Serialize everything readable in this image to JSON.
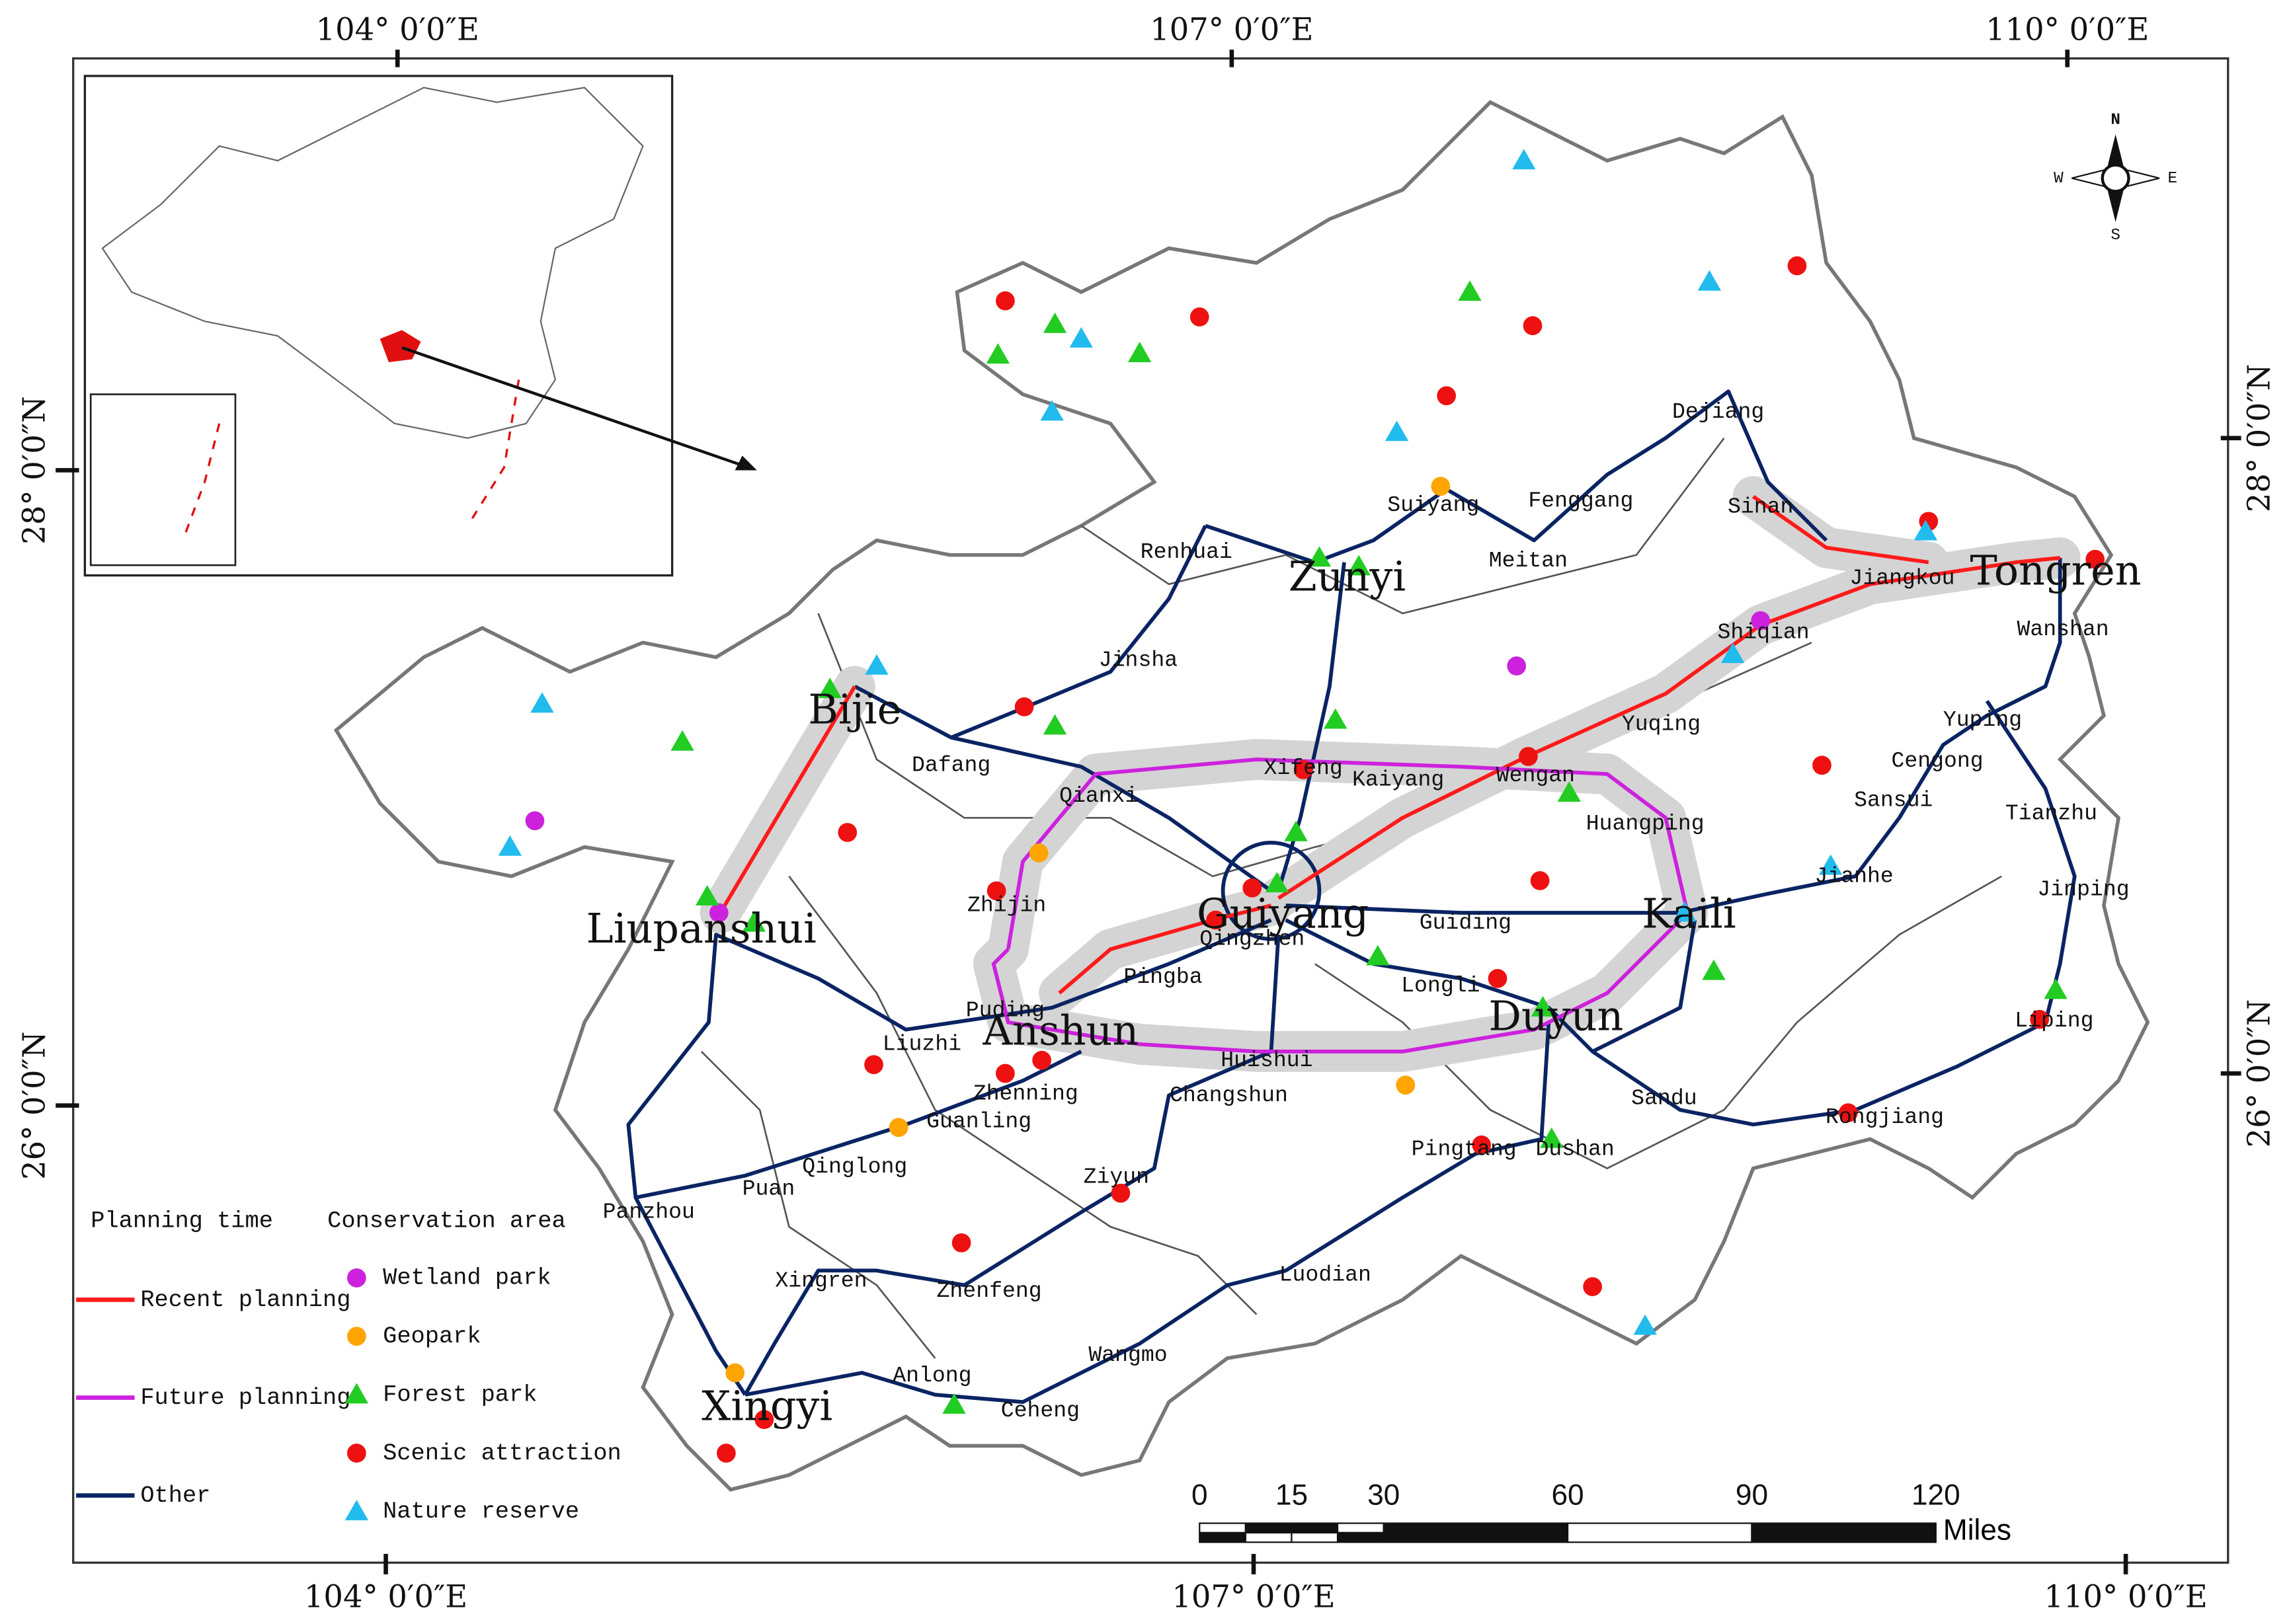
{
  "map": {
    "graticule": {
      "top": [
        "104° 0′0″E",
        "107° 0′0″E",
        "110° 0′0″E"
      ],
      "bottom": [
        "104° 0′0″E",
        "107° 0′0″E",
        "110° 0′0″E"
      ],
      "left": [
        "28° 0′0″N",
        "26° 0′0″N"
      ],
      "right": [
        "28° 0′0″N",
        "26° 0′0″N"
      ]
    },
    "major_cities": [
      "Zunyi",
      "Bijie",
      "Liupanshui",
      "Guiyang",
      "Anshun",
      "Kaili",
      "Duyun",
      "Tongren",
      "Xingyi"
    ],
    "cities": [
      "Dejiang",
      "Suiyang",
      "Fenggang",
      "Sinan",
      "Meitan",
      "Renhuai",
      "Jiangkou",
      "Shiqian",
      "Wanshan",
      "Jinsha",
      "Yuqing",
      "Yuping",
      "Dafang",
      "Xifeng",
      "Kaiyang",
      "Wengan",
      "Cengong",
      "Qianxi",
      "Sansui",
      "Huangping",
      "Tianzhu",
      "Zhijin",
      "Jianhe",
      "Jinping",
      "Qingzhen",
      "Guiding",
      "Pingba",
      "Longli",
      "Puding",
      "Liping",
      "Liuzhi",
      "Huishui",
      "Zhenning",
      "Changshun",
      "Sandu",
      "Guanling",
      "Rongjiang",
      "Qinglong",
      "Pingtang",
      "Dushan",
      "Ziyun",
      "Puan",
      "Panzhou",
      "Luodian",
      "Xingren",
      "Zhenfeng",
      "Wangmo",
      "Anlong",
      "Ceheng"
    ],
    "legend": {
      "planning_title": "Planning time",
      "planning": [
        "Recent planning",
        "Future planning",
        "Other"
      ],
      "conservation_title": "Conservation area",
      "conservation": [
        "Wetland park",
        "Geopark",
        "Forest park",
        "Scenic attraction",
        "Nature reserve"
      ]
    },
    "scale_bar": {
      "ticks": [
        0,
        15,
        30,
        60,
        90,
        120
      ],
      "unit": "Miles"
    },
    "compass": [
      "N",
      "E",
      "S",
      "W"
    ]
  }
}
